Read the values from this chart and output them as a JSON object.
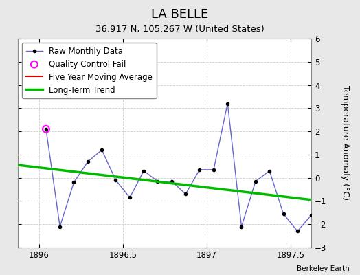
{
  "title": "LA BELLE",
  "subtitle": "36.917 N, 105.267 W (United States)",
  "ylabel": "Temperature Anomaly (°C)",
  "credit": "Berkeley Earth",
  "xlim": [
    1895.875,
    1897.625
  ],
  "ylim": [
    -3,
    6
  ],
  "yticks": [
    -3,
    -2,
    -1,
    0,
    1,
    2,
    3,
    4,
    5,
    6
  ],
  "xticks": [
    1896,
    1896.5,
    1897,
    1897.5
  ],
  "fig_bg_color": "#e8e8e8",
  "plot_bg_color": "#ffffff",
  "raw_x": [
    1896.042,
    1896.125,
    1896.208,
    1896.292,
    1896.375,
    1896.458,
    1896.542,
    1896.625,
    1896.708,
    1896.792,
    1896.875,
    1896.958,
    1897.042,
    1897.125,
    1897.208,
    1897.292,
    1897.375,
    1897.458,
    1897.542,
    1897.625
  ],
  "raw_y": [
    2.1,
    -2.1,
    -0.2,
    0.7,
    1.2,
    -0.1,
    -0.85,
    0.3,
    -0.15,
    -0.15,
    -0.7,
    0.35,
    0.35,
    3.2,
    -2.1,
    -0.15,
    0.3,
    -1.55,
    -2.3,
    -1.6
  ],
  "qc_fail_x": [
    1896.042
  ],
  "qc_fail_y": [
    2.1
  ],
  "trend_x": [
    1895.875,
    1897.625
  ],
  "trend_y": [
    0.55,
    -0.95
  ],
  "raw_line_color": "#6666cc",
  "raw_marker_color": "#000000",
  "qc_color": "#ff00ff",
  "trend_color": "#00bb00",
  "mavg_color": "#dd0000",
  "grid_color": "#cccccc",
  "legend_fontsize": 8.5,
  "title_fontsize": 13,
  "subtitle_fontsize": 9.5,
  "tick_fontsize": 8.5
}
